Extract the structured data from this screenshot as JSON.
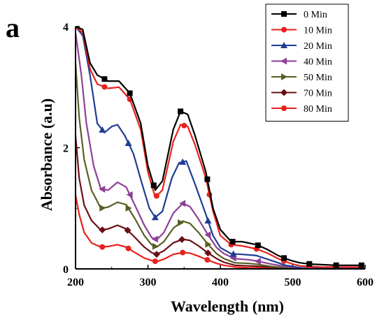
{
  "panel_label": "a",
  "chart_data": {
    "type": "line",
    "title": "",
    "xlabel": "Wavelength (nm)",
    "ylabel": "Absorbance (a.u)",
    "xlim": [
      200,
      600
    ],
    "ylim": [
      0,
      4
    ],
    "xticks": [
      200,
      300,
      400,
      500,
      600
    ],
    "yticks": [
      0,
      2,
      4
    ],
    "grid": false,
    "legend_position": "top-right",
    "series": [
      {
        "name": "0 Min",
        "color": "#000000",
        "marker": "square",
        "points": [
          [
            200,
            4.0
          ],
          [
            210,
            3.95
          ],
          [
            220,
            3.4
          ],
          [
            230,
            3.2
          ],
          [
            245,
            3.1
          ],
          [
            260,
            3.1
          ],
          [
            275,
            2.9
          ],
          [
            290,
            2.4
          ],
          [
            300,
            1.7
          ],
          [
            310,
            1.3
          ],
          [
            320,
            1.45
          ],
          [
            335,
            2.3
          ],
          [
            345,
            2.6
          ],
          [
            355,
            2.55
          ],
          [
            365,
            2.2
          ],
          [
            380,
            1.6
          ],
          [
            390,
            1.0
          ],
          [
            400,
            0.65
          ],
          [
            415,
            0.45
          ],
          [
            430,
            0.45
          ],
          [
            450,
            0.4
          ],
          [
            465,
            0.32
          ],
          [
            480,
            0.22
          ],
          [
            490,
            0.17
          ],
          [
            500,
            0.13
          ],
          [
            510,
            0.1
          ],
          [
            525,
            0.08
          ],
          [
            540,
            0.07
          ],
          [
            560,
            0.06
          ],
          [
            580,
            0.06
          ],
          [
            595,
            0.06
          ]
        ],
        "markers_x": [
          240,
          275,
          308,
          345,
          382,
          417,
          452,
          488,
          523,
          560,
          595
        ]
      },
      {
        "name": "10 Min",
        "color": "#e8211c",
        "marker": "circle",
        "points": [
          [
            200,
            4.0
          ],
          [
            210,
            3.9
          ],
          [
            220,
            3.3
          ],
          [
            230,
            3.05
          ],
          [
            245,
            2.98
          ],
          [
            260,
            3.0
          ],
          [
            275,
            2.8
          ],
          [
            290,
            2.3
          ],
          [
            300,
            1.6
          ],
          [
            310,
            1.18
          ],
          [
            320,
            1.3
          ],
          [
            335,
            2.1
          ],
          [
            345,
            2.38
          ],
          [
            355,
            2.35
          ],
          [
            365,
            2.05
          ],
          [
            380,
            1.5
          ],
          [
            390,
            0.95
          ],
          [
            400,
            0.55
          ],
          [
            415,
            0.4
          ],
          [
            430,
            0.38
          ],
          [
            450,
            0.33
          ],
          [
            465,
            0.26
          ],
          [
            480,
            0.17
          ],
          [
            490,
            0.12
          ],
          [
            500,
            0.08
          ],
          [
            510,
            0.05
          ],
          [
            525,
            0.04
          ],
          [
            540,
            0.03
          ],
          [
            560,
            0.03
          ],
          [
            580,
            0.03
          ],
          [
            595,
            0.03
          ]
        ],
        "markers_x": [
          240,
          275,
          312,
          350,
          385,
          415,
          450,
          488,
          523,
          558,
          595
        ]
      },
      {
        "name": "20 Min",
        "color": "#1f3c94",
        "marker": "triangle-up",
        "points": [
          [
            200,
            4.0
          ],
          [
            210,
            3.85
          ],
          [
            220,
            3.2
          ],
          [
            230,
            2.4
          ],
          [
            240,
            2.25
          ],
          [
            250,
            2.35
          ],
          [
            258,
            2.38
          ],
          [
            268,
            2.2
          ],
          [
            280,
            1.9
          ],
          [
            292,
            1.4
          ],
          [
            302,
            1.0
          ],
          [
            310,
            0.85
          ],
          [
            320,
            0.95
          ],
          [
            333,
            1.5
          ],
          [
            343,
            1.75
          ],
          [
            353,
            1.78
          ],
          [
            365,
            1.4
          ],
          [
            380,
            0.9
          ],
          [
            390,
            0.55
          ],
          [
            400,
            0.35
          ],
          [
            415,
            0.25
          ],
          [
            430,
            0.24
          ],
          [
            450,
            0.22
          ],
          [
            465,
            0.16
          ],
          [
            480,
            0.1
          ],
          [
            490,
            0.06
          ],
          [
            500,
            0.04
          ],
          [
            510,
            0.02
          ],
          [
            525,
            0.01
          ],
          [
            560,
            0.01
          ],
          [
            595,
            0.01
          ]
        ],
        "markers_x": [
          237,
          273,
          310,
          348,
          383,
          418
        ]
      },
      {
        "name": "40 Min",
        "color": "#8e3f96",
        "marker": "triangle-left",
        "points": [
          [
            200,
            3.9
          ],
          [
            208,
            3.2
          ],
          [
            215,
            2.4
          ],
          [
            225,
            1.7
          ],
          [
            235,
            1.32
          ],
          [
            245,
            1.3
          ],
          [
            258,
            1.43
          ],
          [
            270,
            1.35
          ],
          [
            282,
            1.05
          ],
          [
            295,
            0.72
          ],
          [
            305,
            0.52
          ],
          [
            312,
            0.48
          ],
          [
            322,
            0.6
          ],
          [
            335,
            0.92
          ],
          [
            348,
            1.08
          ],
          [
            358,
            1.03
          ],
          [
            370,
            0.82
          ],
          [
            382,
            0.58
          ],
          [
            395,
            0.35
          ],
          [
            405,
            0.25
          ],
          [
            420,
            0.17
          ],
          [
            440,
            0.15
          ],
          [
            455,
            0.12
          ],
          [
            470,
            0.08
          ],
          [
            490,
            0.04
          ],
          [
            510,
            0.02
          ],
          [
            540,
            0.01
          ],
          [
            595,
            0.01
          ]
        ],
        "markers_x": [
          237,
          275,
          310,
          348,
          383,
          418,
          452
        ]
      },
      {
        "name": "50 Min",
        "color": "#5a5e25",
        "marker": "triangle-right",
        "points": [
          [
            200,
            3.4
          ],
          [
            205,
            2.5
          ],
          [
            212,
            1.8
          ],
          [
            222,
            1.3
          ],
          [
            235,
            1.0
          ],
          [
            245,
            1.02
          ],
          [
            258,
            1.1
          ],
          [
            270,
            1.06
          ],
          [
            282,
            0.83
          ],
          [
            295,
            0.55
          ],
          [
            305,
            0.4
          ],
          [
            312,
            0.36
          ],
          [
            322,
            0.45
          ],
          [
            335,
            0.67
          ],
          [
            348,
            0.79
          ],
          [
            358,
            0.75
          ],
          [
            370,
            0.6
          ],
          [
            382,
            0.42
          ],
          [
            395,
            0.25
          ],
          [
            405,
            0.17
          ],
          [
            420,
            0.1
          ],
          [
            440,
            0.09
          ],
          [
            455,
            0.07
          ],
          [
            470,
            0.04
          ],
          [
            490,
            0.02
          ],
          [
            520,
            0.01
          ],
          [
            595,
            0.01
          ]
        ],
        "markers_x": [
          237,
          273,
          310,
          345,
          383
        ]
      },
      {
        "name": "70 Min",
        "color": "#6b0f15",
        "marker": "diamond",
        "points": [
          [
            200,
            2.2
          ],
          [
            205,
            1.5
          ],
          [
            212,
            1.05
          ],
          [
            222,
            0.8
          ],
          [
            235,
            0.64
          ],
          [
            245,
            0.66
          ],
          [
            258,
            0.72
          ],
          [
            270,
            0.66
          ],
          [
            282,
            0.52
          ],
          [
            295,
            0.36
          ],
          [
            305,
            0.27
          ],
          [
            312,
            0.24
          ],
          [
            322,
            0.3
          ],
          [
            335,
            0.43
          ],
          [
            348,
            0.49
          ],
          [
            358,
            0.47
          ],
          [
            370,
            0.38
          ],
          [
            382,
            0.27
          ],
          [
            395,
            0.17
          ],
          [
            405,
            0.11
          ],
          [
            420,
            0.06
          ],
          [
            440,
            0.05
          ],
          [
            455,
            0.04
          ],
          [
            470,
            0.03
          ],
          [
            490,
            0.02
          ],
          [
            520,
            0.01
          ],
          [
            595,
            0.01
          ]
        ],
        "markers_x": [
          237,
          272,
          312,
          347,
          383
        ]
      },
      {
        "name": "80 Min",
        "color": "#e8211c",
        "marker": "circle",
        "points": [
          [
            200,
            1.22
          ],
          [
            205,
            0.9
          ],
          [
            212,
            0.6
          ],
          [
            222,
            0.43
          ],
          [
            235,
            0.36
          ],
          [
            245,
            0.37
          ],
          [
            258,
            0.4
          ],
          [
            270,
            0.36
          ],
          [
            282,
            0.27
          ],
          [
            295,
            0.18
          ],
          [
            305,
            0.14
          ],
          [
            312,
            0.12
          ],
          [
            322,
            0.16
          ],
          [
            335,
            0.24
          ],
          [
            348,
            0.27
          ],
          [
            358,
            0.26
          ],
          [
            370,
            0.21
          ],
          [
            382,
            0.15
          ],
          [
            395,
            0.09
          ],
          [
            405,
            0.06
          ],
          [
            420,
            0.03
          ],
          [
            440,
            0.02
          ],
          [
            470,
            0.01
          ],
          [
            520,
            0.01
          ],
          [
            595,
            0.01
          ]
        ],
        "markers_x": [
          237,
          273,
          310,
          348,
          382
        ]
      }
    ]
  }
}
